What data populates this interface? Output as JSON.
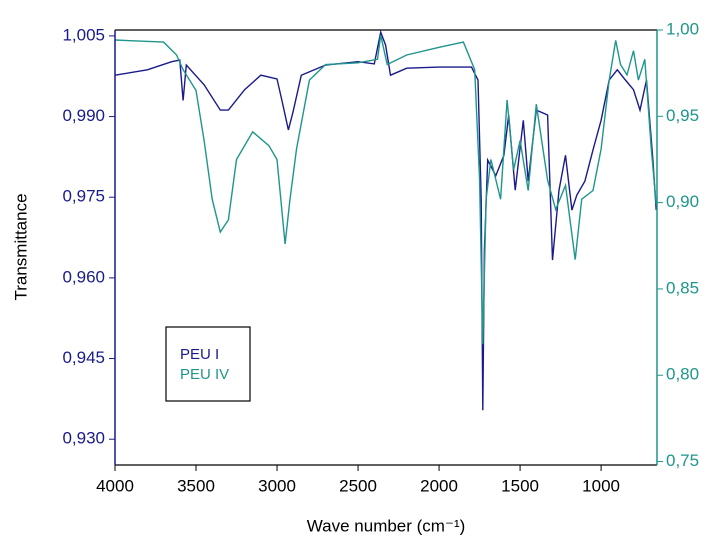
{
  "chart_data": {
    "type": "line",
    "x_label": "Wave number (cm⁻¹)",
    "y_label": "Transmittance",
    "xlim": [
      4000,
      655
    ],
    "xticks": [
      4000,
      3500,
      3000,
      2500,
      2000,
      1500,
      1000
    ],
    "ylim": [
      0.9252,
      1.0061
    ],
    "yticks": [
      {
        "value": 0.93,
        "label": "0,930"
      },
      {
        "value": 0.945,
        "label": "0,945"
      },
      {
        "value": 0.96,
        "label": "0,960"
      },
      {
        "value": 0.975,
        "label": "0,975"
      },
      {
        "value": 0.99,
        "label": "0,990"
      },
      {
        "value": 1.005,
        "label": "1,005"
      }
    ],
    "y2lim": [
      0.748,
      1.0
    ],
    "y2ticks": [
      {
        "value": 0.75,
        "label": "0,75"
      },
      {
        "value": 0.8,
        "label": "0,80"
      },
      {
        "value": 0.85,
        "label": "0,85"
      },
      {
        "value": 0.9,
        "label": "0,90"
      },
      {
        "value": 0.95,
        "label": "0,95"
      },
      {
        "value": 1.0,
        "label": "1,00"
      }
    ],
    "y_color": "#1a1a8c",
    "y2_color": "#1f968b",
    "legend": "lower-left",
    "series": [
      {
        "name": "PEU I",
        "color": "#1a1a8c",
        "x": [
          4000,
          3800,
          3650,
          3600,
          3580,
          3560,
          3450,
          3350,
          3300,
          3200,
          3100,
          3000,
          2970,
          2930,
          2900,
          2850,
          2700,
          2500,
          2400,
          2360,
          2330,
          2300,
          2200,
          2000,
          1800,
          1760,
          1740,
          1730,
          1720,
          1700,
          1650,
          1600,
          1570,
          1530,
          1480,
          1450,
          1400,
          1330,
          1300,
          1260,
          1220,
          1180,
          1150,
          1100,
          1050,
          1000,
          950,
          900,
          850,
          800,
          760,
          720,
          680,
          660
        ],
        "values": [
          0.9977,
          0.9987,
          1.0002,
          1.0005,
          0.993,
          0.9996,
          0.9959,
          0.9912,
          0.9912,
          0.995,
          0.9977,
          0.997,
          0.993,
          0.9875,
          0.991,
          0.9977,
          0.9996,
          1.0002,
          0.9998,
          1.0057,
          1.0033,
          0.9977,
          0.999,
          0.9992,
          0.9992,
          0.9968,
          0.9745,
          0.9354,
          0.9652,
          0.9819,
          0.979,
          0.9828,
          0.9903,
          0.9763,
          0.9893,
          0.978,
          0.9912,
          0.9903,
          0.9633,
          0.9763,
          0.9828,
          0.9726,
          0.9754,
          0.978,
          0.9838,
          0.9893,
          0.9968,
          0.9987,
          0.9968,
          0.995,
          0.9912,
          0.9968,
          0.9819,
          0.9726
        ]
      },
      {
        "name": "PEU IV",
        "color": "#1f968b",
        "axis": "y2",
        "x": [
          4000,
          3700,
          3620,
          3580,
          3500,
          3450,
          3400,
          3350,
          3300,
          3250,
          3150,
          3050,
          3000,
          2950,
          2920,
          2880,
          2800,
          2700,
          2500,
          2380,
          2360,
          2320,
          2200,
          2000,
          1850,
          1780,
          1750,
          1730,
          1710,
          1680,
          1620,
          1580,
          1540,
          1500,
          1450,
          1400,
          1330,
          1280,
          1220,
          1160,
          1120,
          1050,
          1000,
          950,
          910,
          880,
          840,
          800,
          770,
          730,
          690,
          660
        ],
        "values": [
          0.9942,
          0.993,
          0.9855,
          0.977,
          0.965,
          0.936,
          0.902,
          0.883,
          0.89,
          0.925,
          0.941,
          0.933,
          0.925,
          0.876,
          0.902,
          0.931,
          0.971,
          0.98,
          0.981,
          0.983,
          0.997,
          0.98,
          0.9855,
          0.99,
          0.993,
          0.977,
          0.913,
          0.818,
          0.902,
          0.925,
          0.902,
          0.9595,
          0.919,
          0.936,
          0.907,
          0.957,
          0.913,
          0.896,
          0.91,
          0.867,
          0.902,
          0.907,
          0.931,
          0.971,
          0.994,
          0.98,
          0.974,
          0.988,
          0.971,
          0.983,
          0.931,
          0.899
        ]
      }
    ]
  }
}
